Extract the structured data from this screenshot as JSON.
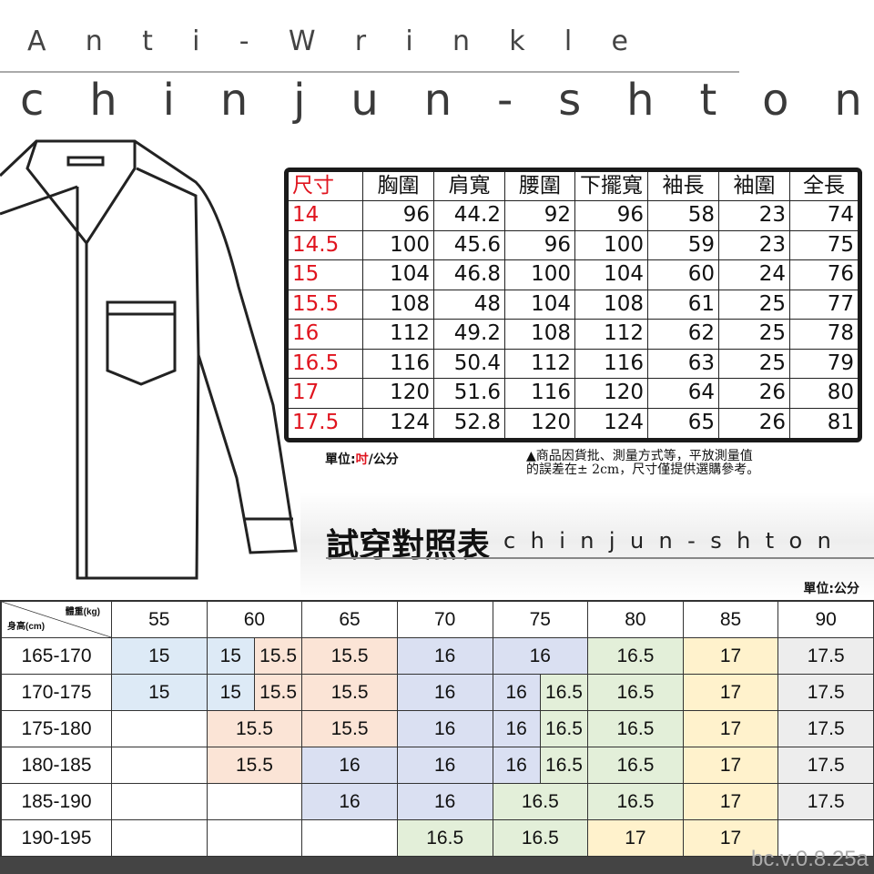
{
  "header": {
    "subtitle": "Anti-Wrinkle",
    "brand": "chinjun-shton"
  },
  "size_table": {
    "headers": [
      "尺寸",
      "胸圍",
      "肩寬",
      "腰圍",
      "下擺寬",
      "袖長",
      "袖圍",
      "全長"
    ],
    "rows": [
      [
        "14",
        "96",
        "44.2",
        "92",
        "96",
        "58",
        "23",
        "74"
      ],
      [
        "14.5",
        "100",
        "45.6",
        "96",
        "100",
        "59",
        "23",
        "75"
      ],
      [
        "15",
        "104",
        "46.8",
        "100",
        "104",
        "60",
        "24",
        "76"
      ],
      [
        "15.5",
        "108",
        "48",
        "104",
        "108",
        "61",
        "25",
        "77"
      ],
      [
        "16",
        "112",
        "49.2",
        "108",
        "112",
        "62",
        "25",
        "78"
      ],
      [
        "16.5",
        "116",
        "50.4",
        "112",
        "116",
        "63",
        "25",
        "79"
      ],
      [
        "17",
        "120",
        "51.6",
        "116",
        "120",
        "64",
        "26",
        "80"
      ],
      [
        "17.5",
        "124",
        "52.8",
        "120",
        "124",
        "65",
        "26",
        "81"
      ]
    ],
    "unit_prefix": "單位:",
    "unit_red": "吋",
    "unit_suffix": "/公分",
    "note_line1": "▲商品因貨批、測量方式等，平放測量值",
    "note_line2": "的誤差在± 2cm，尺寸僅提供選購參考。",
    "accent_color": "#e0141e"
  },
  "fit_chart": {
    "title": "試穿對照表",
    "brand": "chinjun-shton",
    "unit": "單位:公分",
    "corner_weight": "體重(kg)",
    "corner_height": "身高(cm)",
    "weights": [
      "55",
      "60",
      "65",
      "70",
      "75",
      "80",
      "85",
      "90"
    ],
    "colors": {
      "blue": "#ddeaf6",
      "peach": "#fbe4d6",
      "lav": "#dae0f2",
      "green": "#e3efd9",
      "yellow": "#fff2cc",
      "gray": "#ededed",
      "none": "#ffffff"
    },
    "rows": [
      {
        "height": "165-170",
        "cells": [
          [
            "15",
            2,
            "blue"
          ],
          [
            "15",
            1,
            "blue"
          ],
          [
            "15.5",
            1,
            "peach"
          ],
          [
            "15.5",
            2,
            "peach"
          ],
          [
            "16",
            2,
            "lav"
          ],
          [
            "16",
            2,
            "lav"
          ],
          [
            "16.5",
            2,
            "green"
          ],
          [
            "17",
            2,
            "yellow"
          ],
          [
            "17.5",
            2,
            "gray"
          ]
        ]
      },
      {
        "height": "170-175",
        "cells": [
          [
            "15",
            2,
            "blue"
          ],
          [
            "15",
            1,
            "blue"
          ],
          [
            "15.5",
            1,
            "peach"
          ],
          [
            "15.5",
            2,
            "peach"
          ],
          [
            "16",
            2,
            "lav"
          ],
          [
            "16",
            1,
            "lav"
          ],
          [
            "16.5",
            1,
            "green"
          ],
          [
            "16.5",
            2,
            "green"
          ],
          [
            "17",
            2,
            "yellow"
          ],
          [
            "17.5",
            2,
            "gray"
          ]
        ]
      },
      {
        "height": "175-180",
        "cells": [
          [
            "",
            2,
            "none"
          ],
          [
            "15.5",
            2,
            "peach"
          ],
          [
            "15.5",
            2,
            "peach"
          ],
          [
            "16",
            2,
            "lav"
          ],
          [
            "16",
            1,
            "lav"
          ],
          [
            "16.5",
            1,
            "green"
          ],
          [
            "16.5",
            2,
            "green"
          ],
          [
            "17",
            2,
            "yellow"
          ],
          [
            "17.5",
            2,
            "gray"
          ]
        ]
      },
      {
        "height": "180-185",
        "cells": [
          [
            "",
            2,
            "none"
          ],
          [
            "15.5",
            2,
            "peach"
          ],
          [
            "16",
            2,
            "lav"
          ],
          [
            "16",
            2,
            "lav"
          ],
          [
            "16",
            1,
            "lav"
          ],
          [
            "16.5",
            1,
            "green"
          ],
          [
            "16.5",
            2,
            "green"
          ],
          [
            "17",
            2,
            "yellow"
          ],
          [
            "17.5",
            2,
            "gray"
          ]
        ]
      },
      {
        "height": "185-190",
        "cells": [
          [
            "",
            2,
            "none"
          ],
          [
            "",
            2,
            "none"
          ],
          [
            "16",
            2,
            "lav"
          ],
          [
            "16",
            2,
            "lav"
          ],
          [
            "16.5",
            2,
            "green"
          ],
          [
            "16.5",
            2,
            "green"
          ],
          [
            "17",
            2,
            "yellow"
          ],
          [
            "17.5",
            2,
            "gray"
          ]
        ]
      },
      {
        "height": "190-195",
        "cells": [
          [
            "",
            2,
            "none"
          ],
          [
            "",
            2,
            "none"
          ],
          [
            "",
            2,
            "none"
          ],
          [
            "16.5",
            2,
            "green"
          ],
          [
            "16.5",
            2,
            "green"
          ],
          [
            "17",
            2,
            "yellow"
          ],
          [
            "17",
            2,
            "yellow"
          ],
          [
            "",
            2,
            "none"
          ]
        ]
      }
    ]
  },
  "footer": {
    "version": "bc.v.0.8.25a"
  }
}
